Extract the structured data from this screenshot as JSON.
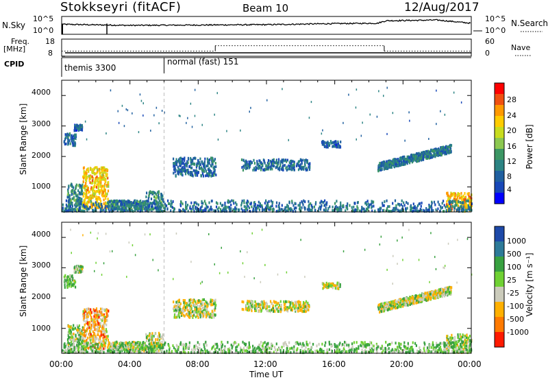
{
  "header": {
    "station": "Stokkseyri (fitACF)",
    "beam": "Beam 10",
    "date": "12/Aug/2017"
  },
  "panels": {
    "nsky": {
      "left_label": "N.Sky",
      "right_label": "N.Search",
      "left_ticks": [
        "10^5",
        "10^0"
      ],
      "right_ticks": [
        "10^5",
        "10^0"
      ]
    },
    "freq": {
      "left_label_line1": "Freq.",
      "left_label_line2": "[MHz]",
      "left_ticks": [
        "18",
        "8"
      ],
      "right_ticks": [
        "60",
        "0"
      ],
      "right_label": "Nave"
    },
    "cpid": {
      "label": "CPID",
      "segments": [
        {
          "name": "themis 3300",
          "start_hour": 0
        },
        {
          "name": "normal (fast) 151",
          "start_hour": 6
        }
      ]
    }
  },
  "colorbars": {
    "power": {
      "label": "Power [dB]",
      "ticks": [
        "28",
        "24",
        "20",
        "16",
        "12",
        "8",
        "4"
      ],
      "colors": [
        "#ff0000",
        "#f05010",
        "#ff9900",
        "#ffcc00",
        "#c8dc1e",
        "#8cc850",
        "#3c9664",
        "#2c8484",
        "#2060a0",
        "#1848b8",
        "#0000ff"
      ]
    },
    "velocity": {
      "label": "Velocity [m s⁻¹]",
      "ticks": [
        "1000",
        "500",
        "100",
        "25",
        "-25",
        "-100",
        "-500",
        "-1000"
      ],
      "colors": [
        "#1d49a8",
        "#2d7a98",
        "#38a140",
        "#6fd133",
        "#cbcbbb",
        "#ffb000",
        "#ff7a00",
        "#ff1a00"
      ]
    }
  },
  "axes": {
    "ylabel": "Slant Range [km]",
    "yticks": [
      "4000",
      "3000",
      "2000",
      "1000"
    ],
    "xticks": [
      "00:00",
      "04:00",
      "08:00",
      "12:00",
      "16:00",
      "20:00",
      "00:00"
    ],
    "xlabel": "Time UT"
  },
  "chart_data": {
    "type": "heatmap",
    "x": {
      "label": "Time UT",
      "unit": "hours",
      "range": [
        0,
        24
      ],
      "ticks": [
        0,
        4,
        8,
        12,
        16,
        20,
        24
      ]
    },
    "y": {
      "label": "Slant Range [km]",
      "unit": "km",
      "range": [
        180,
        4500
      ],
      "ticks": [
        1000,
        2000,
        3000,
        4000
      ]
    },
    "cpid_change_hour": 6.0,
    "series": [
      {
        "name": "Power",
        "unit": "dB",
        "scale": [
          0,
          30
        ]
      },
      {
        "name": "Velocity",
        "unit": "m s^-1",
        "scale": [
          -1000,
          1000
        ]
      }
    ],
    "echo_regions": [
      {
        "t": [
          0.1,
          0.8
        ],
        "r": [
          2350,
          2750
        ],
        "power_db": 6,
        "velocity": 50
      },
      {
        "t": [
          0.7,
          1.2
        ],
        "r": [
          2850,
          3050
        ],
        "power_db": 6,
        "velocity": 40
      },
      {
        "t": [
          0.3,
          1.2
        ],
        "r": [
          200,
          1100
        ],
        "power_db": 10,
        "velocity": 30
      },
      {
        "t": [
          1.2,
          2.7
        ],
        "r": [
          300,
          1650
        ],
        "power_db": 21,
        "velocity": -40
      },
      {
        "t": [
          2.7,
          5.9
        ],
        "r": [
          200,
          800
        ],
        "power_db": 9,
        "velocity": 15
      },
      {
        "t": [
          6.5,
          9.0
        ],
        "r": [
          1350,
          1950
        ],
        "power_db": 7,
        "velocity": 10
      },
      {
        "t": [
          10.5,
          14.5
        ],
        "r": [
          1550,
          1900
        ],
        "power_db": 7,
        "velocity": 5
      },
      {
        "t": [
          15.2,
          16.3
        ],
        "r": [
          2300,
          2500
        ],
        "power_db": 6,
        "velocity": 0
      },
      {
        "t": [
          18.5,
          22.8
        ],
        "r": [
          1600,
          2450
        ],
        "power_db": 8,
        "velocity": 10
      },
      {
        "t": [
          22.5,
          24.0
        ],
        "r": [
          200,
          800
        ],
        "power_db": 22,
        "velocity": 25
      },
      {
        "t": [
          0.0,
          24.0
        ],
        "r": [
          200,
          550
        ],
        "power_db": 7,
        "velocity": 60
      }
    ],
    "nsky_level_log10": [
      {
        "t": 0,
        "v": 2.8
      },
      {
        "t": 4,
        "v": 2.5
      },
      {
        "t": 8,
        "v": 2.6
      },
      {
        "t": 12,
        "v": 2.7
      },
      {
        "t": 16,
        "v": 3.0
      },
      {
        "t": 18.5,
        "v": 3.1
      },
      {
        "t": 19,
        "v": 3.8
      },
      {
        "t": 22,
        "v": 4.0
      },
      {
        "t": 24,
        "v": 3.1
      }
    ],
    "freq_mhz": [
      {
        "t": [
          0,
          0.2
        ],
        "v": 8
      },
      {
        "t": [
          0.2,
          24
        ],
        "v": 10
      }
    ],
    "nave": [
      {
        "t": [
          0,
          9
        ],
        "v": 18
      },
      {
        "t": [
          9,
          18.9
        ],
        "v": 37
      },
      {
        "t": [
          18.9,
          24
        ],
        "v": 18
      }
    ]
  }
}
